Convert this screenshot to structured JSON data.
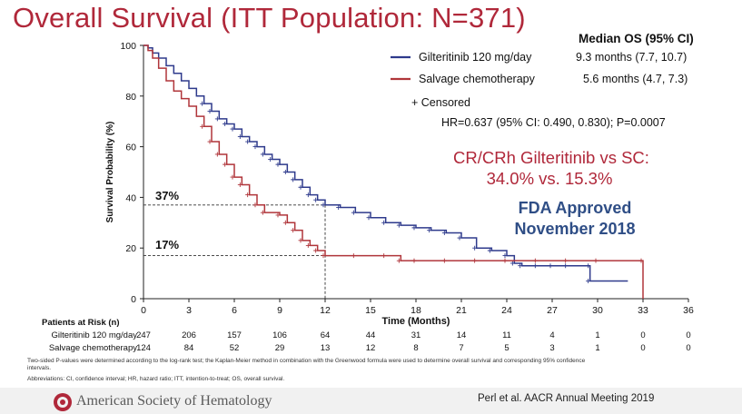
{
  "slide": {
    "title": "Overall Survival (ITT Population: N=371)",
    "footnote_1": "Two-sided P-values were determined according to the log-rank test; the Kaplan-Meier method in combination with the Greenwood formula were used to determine overall survival and corresponding 95% confidence intervals.",
    "footnote_2": "Abbreviations: CI, confidence interval; HR, hazard ratio; ITT, intention-to-treat; OS, overall survival.",
    "org_name": "American Society of Hematology",
    "citation": "Perl et al. AACR Annual Meeting 2019"
  },
  "colors": {
    "gilteritinib": "#2e3a8c",
    "chemo": "#b0353a",
    "title": "#b0283a",
    "fda": "#2f4e86"
  },
  "chart_data": {
    "type": "line",
    "subtype": "kaplan-meier",
    "xlabel": "Time (Months)",
    "ylabel": "Survival Probability (%)",
    "xlim": [
      0,
      36
    ],
    "ylim": [
      0,
      100
    ],
    "xticks": [
      "0",
      "3",
      "6",
      "9",
      "12",
      "15",
      "18",
      "21",
      "24",
      "27",
      "30",
      "33",
      "36"
    ],
    "yticks": [
      "0",
      "20",
      "40",
      "60",
      "80",
      "100"
    ],
    "legend_header": "Median OS (95% CI)",
    "series": [
      {
        "name": "Gilteritinib 120 mg/day",
        "median": "9.3 months (7.7, 10.7)",
        "points": [
          [
            0,
            100
          ],
          [
            0.3,
            99
          ],
          [
            0.6,
            97
          ],
          [
            1,
            95
          ],
          [
            1.5,
            92
          ],
          [
            2,
            89
          ],
          [
            2.5,
            86
          ],
          [
            3,
            83
          ],
          [
            3.5,
            80
          ],
          [
            4,
            77
          ],
          [
            4.5,
            74
          ],
          [
            5,
            71
          ],
          [
            5.5,
            69
          ],
          [
            6,
            67
          ],
          [
            6.5,
            64
          ],
          [
            7,
            62
          ],
          [
            7.5,
            60
          ],
          [
            8,
            57
          ],
          [
            8.5,
            55
          ],
          [
            9,
            53
          ],
          [
            9.5,
            50
          ],
          [
            10,
            47
          ],
          [
            10.5,
            44
          ],
          [
            11,
            41
          ],
          [
            11.5,
            39
          ],
          [
            12,
            37
          ],
          [
            13,
            36
          ],
          [
            14,
            34
          ],
          [
            15,
            32
          ],
          [
            16,
            30
          ],
          [
            17,
            29
          ],
          [
            18,
            28
          ],
          [
            19,
            27
          ],
          [
            20,
            26
          ],
          [
            21,
            24
          ],
          [
            22,
            20
          ],
          [
            23,
            19
          ],
          [
            24,
            17
          ],
          [
            24.5,
            14
          ],
          [
            25,
            13
          ],
          [
            26,
            13
          ],
          [
            27,
            13
          ],
          [
            28,
            13
          ],
          [
            29.5,
            13
          ],
          [
            29.5,
            7
          ],
          [
            32,
            7
          ]
        ]
      },
      {
        "name": "Salvage chemotherapy",
        "median": "5.6 months (4.7, 7.3)",
        "points": [
          [
            0,
            100
          ],
          [
            0.3,
            98
          ],
          [
            0.6,
            95
          ],
          [
            1,
            91
          ],
          [
            1.5,
            86
          ],
          [
            2,
            82
          ],
          [
            2.5,
            79
          ],
          [
            3,
            76
          ],
          [
            3.5,
            72
          ],
          [
            4,
            68
          ],
          [
            4.5,
            62
          ],
          [
            5,
            57
          ],
          [
            5.5,
            53
          ],
          [
            6,
            48
          ],
          [
            6.5,
            45
          ],
          [
            7,
            41
          ],
          [
            7.5,
            37
          ],
          [
            8,
            34
          ],
          [
            9,
            33
          ],
          [
            9.5,
            30
          ],
          [
            10,
            27
          ],
          [
            10.5,
            23
          ],
          [
            11,
            21
          ],
          [
            11.5,
            19
          ],
          [
            12,
            17
          ],
          [
            14,
            17
          ],
          [
            16,
            17
          ],
          [
            17,
            15
          ],
          [
            18,
            15
          ],
          [
            20,
            15
          ],
          [
            22,
            15
          ],
          [
            24,
            15
          ],
          [
            26,
            15
          ],
          [
            28,
            15
          ],
          [
            30,
            15
          ],
          [
            33,
            15
          ],
          [
            33,
            0
          ]
        ]
      }
    ],
    "censored_label": "+ Censored",
    "hr_text": "HR=0.637 (95% CI: 0.490, 0.830); P=0.0007",
    "annotations": {
      "ref_37": "37%",
      "ref_17": "17%",
      "cr_line1": "CR/CRh Gilteritinib vs SC:",
      "cr_line2": "34.0% vs. 15.3%",
      "fda_line1": "FDA Approved",
      "fda_line2": "November 2018"
    },
    "risk_table": {
      "header": "Patients at Risk (n)",
      "rows": [
        {
          "label": "Gilteritinib 120 mg/day",
          "values": [
            "247",
            "206",
            "157",
            "106",
            "64",
            "44",
            "31",
            "14",
            "11",
            "4",
            "1",
            "0",
            "0"
          ]
        },
        {
          "label": "Salvage chemotherapy",
          "values": [
            "124",
            "84",
            "52",
            "29",
            "13",
            "12",
            "8",
            "7",
            "5",
            "3",
            "1",
            "0",
            "0"
          ]
        }
      ]
    }
  }
}
